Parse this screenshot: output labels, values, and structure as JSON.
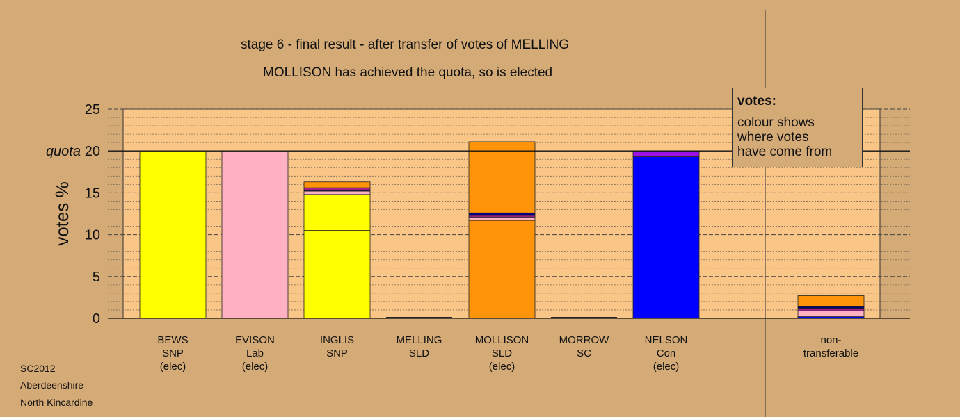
{
  "title": "stage 6 - final result - after transfer of votes of MELLING",
  "subtitle": "MOLLISON has achieved the quota, so is elected",
  "legend": {
    "heading": "votes:",
    "lines": [
      "colour shows",
      "where votes",
      "have come from"
    ]
  },
  "footer": [
    "SC2012",
    "Aberdeenshire",
    "North Kincardine"
  ],
  "colors": {
    "background": "#D4AA76",
    "plot_area": "#F9C688",
    "SNP": "#FFFF00",
    "Lab": "#FFB1C2",
    "SLD": "#FF9309",
    "SC": "#A0208C",
    "Con": "#0000FF",
    "Con_dark": "#00007A",
    "purple": "#9A12E6"
  },
  "chart_data": {
    "type": "bar",
    "stacked": true,
    "ylabel": "votes %",
    "ylim": [
      0,
      25
    ],
    "yticks": [
      0,
      5,
      10,
      15,
      20,
      25
    ],
    "quota": 20,
    "quota_label": "quota",
    "grid": true,
    "categories": [
      {
        "lines": [
          "BEWS",
          "SNP",
          "(elec)"
        ]
      },
      {
        "lines": [
          "EVISON",
          "Lab",
          "(elec)"
        ]
      },
      {
        "lines": [
          "INGLIS",
          "SNP"
        ]
      },
      {
        "lines": [
          "MELLING",
          "SLD"
        ]
      },
      {
        "lines": [
          "MOLLISON",
          "SLD",
          "(elec)"
        ]
      },
      {
        "lines": [
          "MORROW",
          "SC"
        ]
      },
      {
        "lines": [
          "NELSON",
          "Con",
          "(elec)"
        ]
      },
      {
        "lines": [
          "non-",
          "transferable"
        ]
      }
    ],
    "bars": [
      {
        "total": 20.0,
        "segments": [
          {
            "source": "SNP",
            "value": 20.0
          }
        ]
      },
      {
        "total": 20.0,
        "segments": [
          {
            "source": "Lab",
            "value": 20.0
          }
        ]
      },
      {
        "total": 16.3,
        "segments": [
          {
            "source": "SNP",
            "value": 10.5
          },
          {
            "source": "SNP",
            "value": 4.3
          },
          {
            "source": "Lab",
            "value": 0.4
          },
          {
            "source": "Con_dark",
            "value": 0.1
          },
          {
            "source": "SC",
            "value": 0.3
          },
          {
            "source": "SLD",
            "value": 0.7
          }
        ]
      },
      {
        "total": 0,
        "segments": []
      },
      {
        "total": 21.1,
        "segments": [
          {
            "source": "SLD",
            "value": 11.7
          },
          {
            "source": "Lab",
            "value": 0.4
          },
          {
            "source": "SC",
            "value": 0.2
          },
          {
            "source": "Con_dark",
            "value": 0.3
          },
          {
            "source": "SLD",
            "value": 8.5
          }
        ]
      },
      {
        "total": 0,
        "segments": []
      },
      {
        "total": 20.0,
        "segments": [
          {
            "source": "Con",
            "value": 19.3
          },
          {
            "source": "SC",
            "value": 0.1
          },
          {
            "source": "purple",
            "value": 0.6
          }
        ]
      },
      {
        "total": 2.7,
        "segments": [
          {
            "source": "Con",
            "value": 0.2
          },
          {
            "source": "Lab",
            "value": 0.7
          },
          {
            "source": "SC",
            "value": 0.3
          },
          {
            "source": "Con_dark",
            "value": 0.2
          },
          {
            "source": "SLD",
            "value": 1.3
          }
        ]
      }
    ]
  }
}
